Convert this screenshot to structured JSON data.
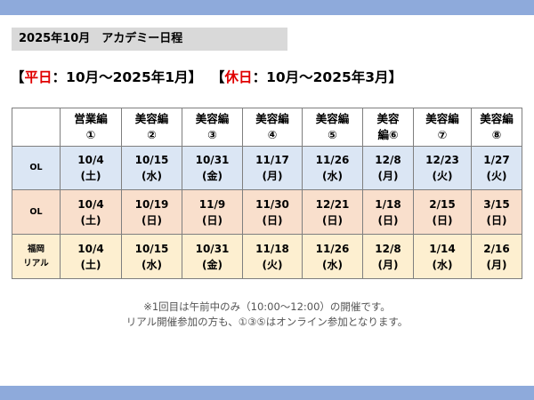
{
  "title": "2025年10月　アカデミー日程",
  "headline": {
    "open1": "【",
    "weekday": "平日",
    "range1": "：10月～2025年1月】",
    "open2": "【",
    "holiday": "休日",
    "range2": "：10月～2025年3月】"
  },
  "columns": [
    {
      "name": "営業編",
      "num": "①"
    },
    {
      "name": "美容編",
      "num": "②"
    },
    {
      "name": "美容編",
      "num": "③"
    },
    {
      "name": "美容編",
      "num": "④"
    },
    {
      "name": "美容編",
      "num": "⑤"
    },
    {
      "name": "美容",
      "num": "編⑥"
    },
    {
      "name": "美容編",
      "num": "⑦"
    },
    {
      "name": "美容編",
      "num": "⑧"
    }
  ],
  "rows": [
    {
      "label": [
        "OL"
      ],
      "cells": [
        [
          "10/4",
          "(土)"
        ],
        [
          "10/15",
          "(水)"
        ],
        [
          "10/31",
          "(金)"
        ],
        [
          "11/17",
          "(月)"
        ],
        [
          "11/26",
          "(水)"
        ],
        [
          "12/8",
          "(月)"
        ],
        [
          "12/23",
          "(火)"
        ],
        [
          "1/27",
          "(火)"
        ]
      ]
    },
    {
      "label": [
        "OL"
      ],
      "cells": [
        [
          "10/4",
          "(土)"
        ],
        [
          "10/19",
          "(日)"
        ],
        [
          "11/9",
          "(日)"
        ],
        [
          "11/30",
          "(日)"
        ],
        [
          "12/21",
          "(日)"
        ],
        [
          "1/18",
          "(日)"
        ],
        [
          "2/15",
          "(日)"
        ],
        [
          "3/15",
          "(日)"
        ]
      ]
    },
    {
      "label": [
        "福岡",
        "リアル"
      ],
      "cells": [
        [
          "10/4",
          "(土)"
        ],
        [
          "10/15",
          "(水)"
        ],
        [
          "10/31",
          "(金)"
        ],
        [
          "11/18",
          "(火)"
        ],
        [
          "11/26",
          "(水)"
        ],
        [
          "12/8",
          "(月)"
        ],
        [
          "1/14",
          "(水)"
        ],
        [
          "2/16",
          "(月)"
        ]
      ]
    }
  ],
  "notes": [
    "※1回目は午前中のみ（10:00～12:00）の開催です。",
    "リアル開催参加の方も、①③⑤はオンライン参加となります。"
  ],
  "colors": {
    "band": "#8eaadb",
    "title_bg": "#d9d9d9",
    "accent_red": "#e00000",
    "row_online_weekday": "#dbe6f4",
    "row_online_holiday": "#f9dfcc",
    "row_fukuoka_real": "#fdefd0"
  }
}
